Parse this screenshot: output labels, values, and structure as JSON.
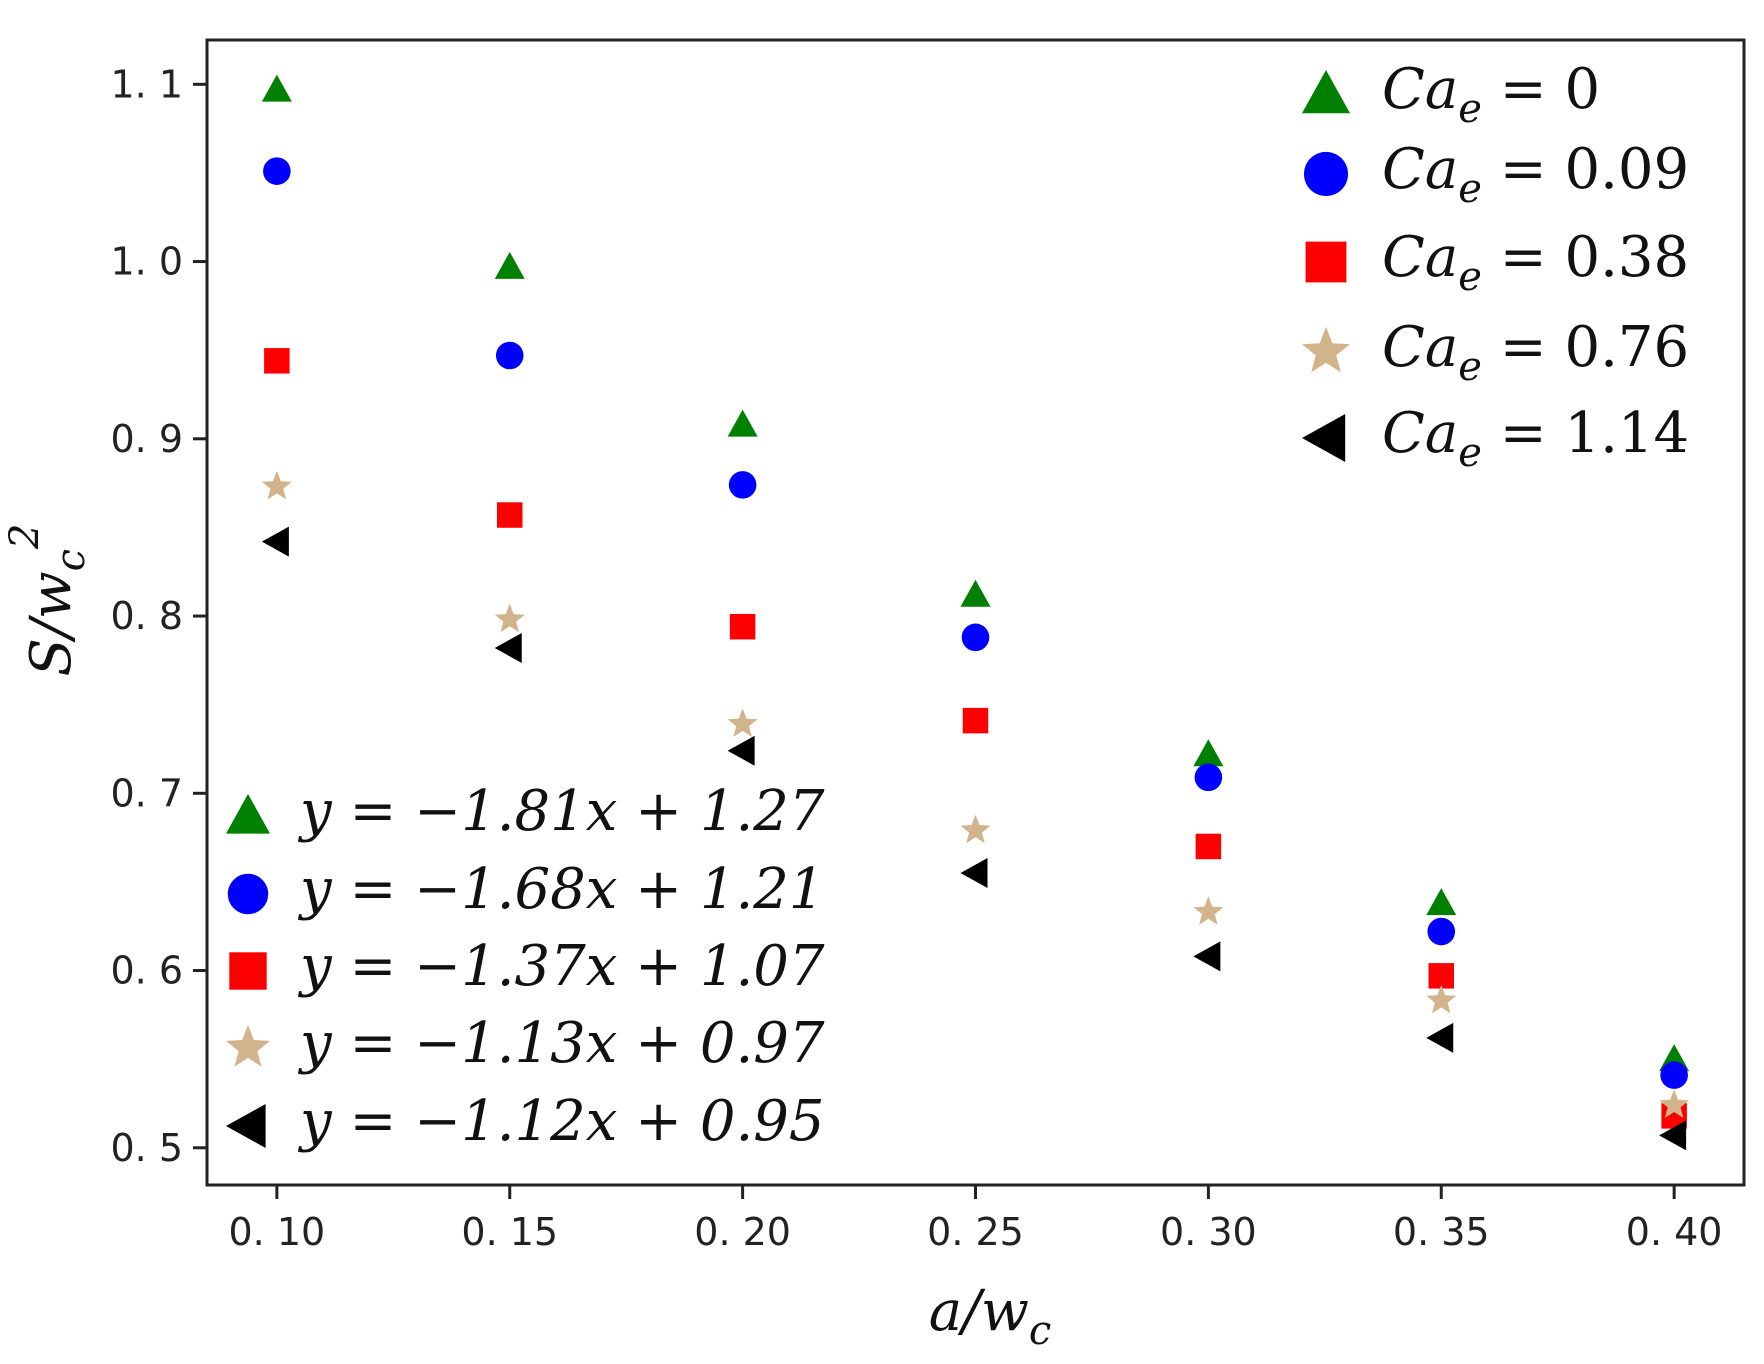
{
  "chart_data": {
    "type": "scatter",
    "title": "",
    "xlabel": "a/w_c",
    "ylabel": "S/w_c^2",
    "xlim": [
      0.085,
      0.415
    ],
    "ylim": [
      0.479,
      1.125
    ],
    "x": [
      0.1,
      0.15,
      0.2,
      0.25,
      0.3,
      0.35,
      0.4
    ],
    "xticks": [
      0.1,
      0.15,
      0.2,
      0.25,
      0.3,
      0.35,
      0.4
    ],
    "xtick_labels": [
      "0. 10",
      "0. 15",
      "0. 20",
      "0. 25",
      "0. 30",
      "0. 35",
      "0. 40"
    ],
    "yticks": [
      0.5,
      0.6,
      0.7,
      0.8,
      0.9,
      1.0,
      1.1
    ],
    "ytick_labels": [
      "0. 5",
      "0. 6",
      "0. 7",
      "0. 8",
      "0. 9",
      "1. 0",
      "1. 1"
    ],
    "grid": false,
    "series": [
      {
        "name": "Ca_e = 0",
        "ca": "0",
        "fit": "y = −1.81x + 1.27",
        "marker": "triangle-up",
        "color": "#008000",
        "values": [
          1.097,
          0.997,
          0.908,
          0.812,
          0.722,
          0.638,
          0.55
        ]
      },
      {
        "name": "Ca_e = 0.09",
        "ca": "0.09",
        "fit": "y = −1.68x + 1.21",
        "marker": "circle",
        "color": "#0000ff",
        "values": [
          1.051,
          0.947,
          0.874,
          0.788,
          0.709,
          0.622,
          0.541
        ]
      },
      {
        "name": "Ca_e = 0.38",
        "ca": "0.38",
        "fit": "y = −1.37x + 1.07",
        "marker": "square",
        "color": "#ff0000",
        "values": [
          0.944,
          0.857,
          0.794,
          0.741,
          0.67,
          0.597,
          0.518
        ]
      },
      {
        "name": "Ca_e = 0.76",
        "ca": "0.76",
        "fit": "y = −1.13x + 0.97",
        "marker": "star",
        "color": "#d2b48c",
        "values": [
          0.873,
          0.798,
          0.739,
          0.679,
          0.633,
          0.583,
          0.524
        ]
      },
      {
        "name": "Ca_e = 1.14",
        "ca": "1.14",
        "fit": "y = −1.12x + 0.95",
        "marker": "triangle-left",
        "color": "#000000",
        "values": [
          0.842,
          0.782,
          0.724,
          0.655,
          0.608,
          0.562,
          0.507
        ]
      }
    ],
    "legend_top_right": {
      "position": "top-right",
      "prefix": "Ca",
      "subscript": "e",
      "equals": "="
    },
    "legend_bottom_left": {
      "position": "bottom-left"
    }
  }
}
